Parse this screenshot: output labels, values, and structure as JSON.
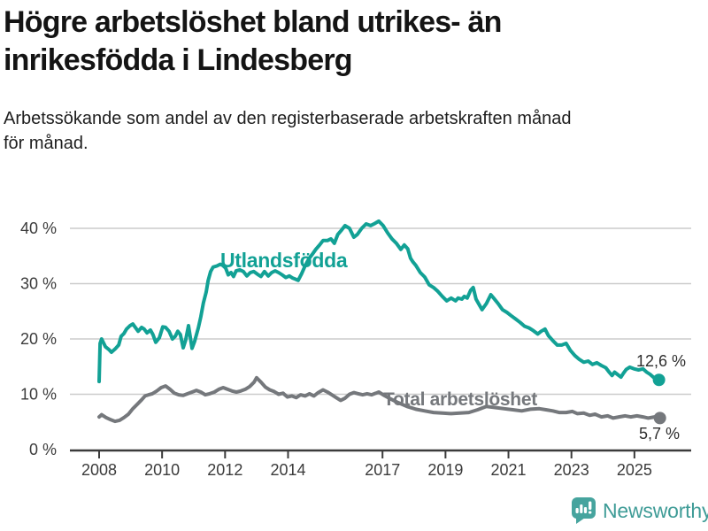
{
  "header": {
    "title_lines": [
      "Högre arbetslöshet bland utrikes- än",
      "inrikesfödda i Lindesberg"
    ],
    "subtitle_lines": [
      "Arbetssökande som andel av den registerbaserade arbetskraften månad",
      "för månad."
    ]
  },
  "footer": {
    "brand": "Newsworthy",
    "brand_color": "#3f9c97",
    "logo_icon": "bar-chart-speech-bubble-icon",
    "logo_color": "#46a49e"
  },
  "chart_data": {
    "type": "line",
    "title": "Högre arbetslöshet bland utrikes- än inrikesfödda i Lindesberg",
    "subtitle": "Arbetssökande som andel av den registerbaserade arbetskraften månad för månad.",
    "grid": true,
    "legend_position": "inline-annotations",
    "x_axis": {
      "ticks": [
        2008,
        2010,
        2012,
        2014,
        2017,
        2019,
        2021,
        2023,
        2025
      ],
      "range": [
        2007.1,
        2026.8
      ]
    },
    "y_axis": {
      "ticks": [
        0,
        10,
        20,
        30,
        40
      ],
      "tick_suffix": " %",
      "range": [
        0,
        42
      ]
    },
    "style": {
      "grid_color": "#cccccc",
      "axis_color": "#3b3b3b",
      "text_color": "#3b3b3b"
    },
    "series": [
      {
        "name": "Utlandsfödda",
        "color": "#12a195",
        "end_label": "12,6 %",
        "end_value": 12.6,
        "points": [
          [
            2008.0,
            12.3
          ],
          [
            2008.03,
            19.2
          ],
          [
            2008.08,
            20.0
          ],
          [
            2008.2,
            18.6
          ],
          [
            2008.31,
            18.1
          ],
          [
            2008.39,
            17.6
          ],
          [
            2008.51,
            18.2
          ],
          [
            2008.62,
            18.9
          ],
          [
            2008.7,
            20.5
          ],
          [
            2008.79,
            21.0
          ],
          [
            2008.87,
            21.8
          ],
          [
            2008.98,
            22.4
          ],
          [
            2009.07,
            22.7
          ],
          [
            2009.15,
            22.1
          ],
          [
            2009.24,
            21.4
          ],
          [
            2009.35,
            22.1
          ],
          [
            2009.43,
            21.8
          ],
          [
            2009.52,
            21.1
          ],
          [
            2009.63,
            21.6
          ],
          [
            2009.71,
            20.8
          ],
          [
            2009.8,
            19.4
          ],
          [
            2009.91,
            20.2
          ],
          [
            2010.02,
            22.2
          ],
          [
            2010.11,
            22.1
          ],
          [
            2010.22,
            21.4
          ],
          [
            2010.33,
            20.0
          ],
          [
            2010.42,
            20.5
          ],
          [
            2010.5,
            21.4
          ],
          [
            2010.58,
            20.8
          ],
          [
            2010.67,
            18.4
          ],
          [
            2010.75,
            19.8
          ],
          [
            2010.84,
            22.4
          ],
          [
            2010.95,
            18.3
          ],
          [
            2011.03,
            19.5
          ],
          [
            2011.15,
            22.0
          ],
          [
            2011.23,
            24.0
          ],
          [
            2011.31,
            26.5
          ],
          [
            2011.4,
            28.5
          ],
          [
            2011.46,
            30.5
          ],
          [
            2011.54,
            32.2
          ],
          [
            2011.62,
            33.0
          ],
          [
            2011.74,
            33.2
          ],
          [
            2011.85,
            33.5
          ],
          [
            2011.93,
            33.3
          ],
          [
            2012.02,
            32.8
          ],
          [
            2012.1,
            31.6
          ],
          [
            2012.19,
            32.0
          ],
          [
            2012.27,
            31.3
          ],
          [
            2012.35,
            32.3
          ],
          [
            2012.47,
            32.5
          ],
          [
            2012.58,
            32.2
          ],
          [
            2012.69,
            31.4
          ],
          [
            2012.8,
            32.0
          ],
          [
            2012.91,
            32.2
          ],
          [
            2013.03,
            31.7
          ],
          [
            2013.14,
            31.3
          ],
          [
            2013.25,
            32.2
          ],
          [
            2013.37,
            31.4
          ],
          [
            2013.48,
            32.0
          ],
          [
            2013.59,
            32.3
          ],
          [
            2013.7,
            32.0
          ],
          [
            2013.81,
            31.6
          ],
          [
            2013.93,
            31.1
          ],
          [
            2014.04,
            31.4
          ],
          [
            2014.15,
            31.0
          ],
          [
            2014.24,
            30.8
          ],
          [
            2014.32,
            30.6
          ],
          [
            2014.43,
            31.8
          ],
          [
            2014.54,
            33.2
          ],
          [
            2014.66,
            34.5
          ],
          [
            2014.77,
            35.3
          ],
          [
            2014.88,
            36.2
          ],
          [
            2015.0,
            37.0
          ],
          [
            2015.11,
            37.8
          ],
          [
            2015.25,
            37.8
          ],
          [
            2015.36,
            38.1
          ],
          [
            2015.47,
            37.3
          ],
          [
            2015.58,
            38.9
          ],
          [
            2015.7,
            39.7
          ],
          [
            2015.81,
            40.5
          ],
          [
            2015.95,
            40.0
          ],
          [
            2016.09,
            38.4
          ],
          [
            2016.2,
            38.9
          ],
          [
            2016.34,
            40.0
          ],
          [
            2016.48,
            40.8
          ],
          [
            2016.62,
            40.5
          ],
          [
            2016.76,
            40.9
          ],
          [
            2016.88,
            41.3
          ],
          [
            2017.02,
            40.5
          ],
          [
            2017.16,
            39.2
          ],
          [
            2017.3,
            38.1
          ],
          [
            2017.44,
            37.3
          ],
          [
            2017.58,
            36.2
          ],
          [
            2017.69,
            37.0
          ],
          [
            2017.8,
            36.3
          ],
          [
            2017.89,
            34.6
          ],
          [
            2017.97,
            33.9
          ],
          [
            2018.06,
            33.3
          ],
          [
            2018.2,
            32.0
          ],
          [
            2018.34,
            31.2
          ],
          [
            2018.48,
            29.8
          ],
          [
            2018.62,
            29.3
          ],
          [
            2018.76,
            28.6
          ],
          [
            2018.9,
            27.7
          ],
          [
            2019.04,
            26.9
          ],
          [
            2019.18,
            27.4
          ],
          [
            2019.32,
            26.9
          ],
          [
            2019.4,
            27.4
          ],
          [
            2019.52,
            27.2
          ],
          [
            2019.6,
            27.7
          ],
          [
            2019.69,
            27.4
          ],
          [
            2019.8,
            28.8
          ],
          [
            2019.88,
            29.3
          ],
          [
            2019.97,
            27.2
          ],
          [
            2020.08,
            26.1
          ],
          [
            2020.16,
            25.3
          ],
          [
            2020.3,
            26.4
          ],
          [
            2020.44,
            28.0
          ],
          [
            2020.53,
            27.4
          ],
          [
            2020.67,
            26.4
          ],
          [
            2020.81,
            25.3
          ],
          [
            2020.95,
            24.8
          ],
          [
            2021.09,
            24.2
          ],
          [
            2021.23,
            23.6
          ],
          [
            2021.37,
            23.0
          ],
          [
            2021.51,
            22.3
          ],
          [
            2021.65,
            22.0
          ],
          [
            2021.79,
            21.5
          ],
          [
            2021.93,
            20.9
          ],
          [
            2022.04,
            21.4
          ],
          [
            2022.16,
            21.8
          ],
          [
            2022.27,
            20.6
          ],
          [
            2022.41,
            19.7
          ],
          [
            2022.55,
            18.9
          ],
          [
            2022.69,
            18.9
          ],
          [
            2022.83,
            19.2
          ],
          [
            2022.97,
            17.9
          ],
          [
            2023.11,
            17.0
          ],
          [
            2023.25,
            16.3
          ],
          [
            2023.39,
            15.8
          ],
          [
            2023.53,
            16.0
          ],
          [
            2023.67,
            15.4
          ],
          [
            2023.81,
            15.7
          ],
          [
            2023.95,
            15.2
          ],
          [
            2024.09,
            14.8
          ],
          [
            2024.21,
            13.9
          ],
          [
            2024.29,
            13.4
          ],
          [
            2024.37,
            14.0
          ],
          [
            2024.46,
            13.6
          ],
          [
            2024.57,
            13.1
          ],
          [
            2024.65,
            13.8
          ],
          [
            2024.74,
            14.5
          ],
          [
            2024.85,
            14.9
          ],
          [
            2024.99,
            14.6
          ],
          [
            2025.13,
            14.4
          ],
          [
            2025.27,
            14.6
          ],
          [
            2025.39,
            14.0
          ],
          [
            2025.5,
            13.6
          ],
          [
            2025.64,
            12.9
          ],
          [
            2025.78,
            12.6
          ]
        ]
      },
      {
        "name": "Total arbetslöshet",
        "color": "#75787c",
        "end_label": "5,7 %",
        "end_value": 5.7,
        "points": [
          [
            2008.0,
            5.9
          ],
          [
            2008.08,
            6.3
          ],
          [
            2008.22,
            5.8
          ],
          [
            2008.37,
            5.4
          ],
          [
            2008.51,
            5.1
          ],
          [
            2008.65,
            5.3
          ],
          [
            2008.79,
            5.8
          ],
          [
            2008.93,
            6.4
          ],
          [
            2009.07,
            7.4
          ],
          [
            2009.21,
            8.2
          ],
          [
            2009.35,
            9.0
          ],
          [
            2009.46,
            9.7
          ],
          [
            2009.57,
            9.9
          ],
          [
            2009.69,
            10.1
          ],
          [
            2009.83,
            10.6
          ],
          [
            2009.97,
            11.2
          ],
          [
            2010.11,
            11.5
          ],
          [
            2010.25,
            10.9
          ],
          [
            2010.39,
            10.2
          ],
          [
            2010.53,
            9.9
          ],
          [
            2010.67,
            9.8
          ],
          [
            2010.81,
            10.1
          ],
          [
            2010.95,
            10.4
          ],
          [
            2011.09,
            10.7
          ],
          [
            2011.23,
            10.4
          ],
          [
            2011.37,
            9.9
          ],
          [
            2011.51,
            10.1
          ],
          [
            2011.66,
            10.4
          ],
          [
            2011.8,
            10.9
          ],
          [
            2011.94,
            11.2
          ],
          [
            2012.08,
            10.9
          ],
          [
            2012.22,
            10.6
          ],
          [
            2012.36,
            10.4
          ],
          [
            2012.5,
            10.6
          ],
          [
            2012.64,
            10.9
          ],
          [
            2012.78,
            11.4
          ],
          [
            2012.92,
            12.2
          ],
          [
            2013.0,
            13.0
          ],
          [
            2013.14,
            12.2
          ],
          [
            2013.28,
            11.3
          ],
          [
            2013.42,
            10.8
          ],
          [
            2013.56,
            10.5
          ],
          [
            2013.7,
            10.0
          ],
          [
            2013.84,
            10.2
          ],
          [
            2013.98,
            9.5
          ],
          [
            2014.12,
            9.7
          ],
          [
            2014.26,
            9.4
          ],
          [
            2014.4,
            9.9
          ],
          [
            2014.54,
            9.7
          ],
          [
            2014.68,
            10.1
          ],
          [
            2014.82,
            9.7
          ],
          [
            2014.96,
            10.3
          ],
          [
            2015.11,
            10.8
          ],
          [
            2015.25,
            10.4
          ],
          [
            2015.39,
            9.9
          ],
          [
            2015.53,
            9.4
          ],
          [
            2015.67,
            8.9
          ],
          [
            2015.81,
            9.3
          ],
          [
            2015.95,
            10.0
          ],
          [
            2016.09,
            10.3
          ],
          [
            2016.23,
            10.1
          ],
          [
            2016.37,
            9.9
          ],
          [
            2016.51,
            10.1
          ],
          [
            2016.65,
            9.9
          ],
          [
            2016.79,
            10.2
          ],
          [
            2016.88,
            10.4
          ],
          [
            2017.02,
            9.9
          ],
          [
            2017.21,
            9.3
          ],
          [
            2017.49,
            8.5
          ],
          [
            2017.78,
            7.8
          ],
          [
            2018.06,
            7.3
          ],
          [
            2018.34,
            7.0
          ],
          [
            2018.62,
            6.7
          ],
          [
            2018.9,
            6.6
          ],
          [
            2019.18,
            6.5
          ],
          [
            2019.46,
            6.6
          ],
          [
            2019.74,
            6.7
          ],
          [
            2020.02,
            7.2
          ],
          [
            2020.3,
            7.8
          ],
          [
            2020.58,
            7.6
          ],
          [
            2020.86,
            7.4
          ],
          [
            2021.14,
            7.2
          ],
          [
            2021.42,
            7.0
          ],
          [
            2021.7,
            7.3
          ],
          [
            2021.98,
            7.4
          ],
          [
            2022.19,
            7.2
          ],
          [
            2022.41,
            7.0
          ],
          [
            2022.61,
            6.7
          ],
          [
            2022.83,
            6.7
          ],
          [
            2023.03,
            6.9
          ],
          [
            2023.19,
            6.5
          ],
          [
            2023.39,
            6.6
          ],
          [
            2023.58,
            6.2
          ],
          [
            2023.75,
            6.4
          ],
          [
            2023.95,
            5.9
          ],
          [
            2024.15,
            6.1
          ],
          [
            2024.32,
            5.7
          ],
          [
            2024.51,
            5.9
          ],
          [
            2024.71,
            6.1
          ],
          [
            2024.88,
            5.9
          ],
          [
            2025.08,
            6.1
          ],
          [
            2025.27,
            5.9
          ],
          [
            2025.44,
            5.7
          ],
          [
            2025.64,
            5.9
          ],
          [
            2025.81,
            5.7
          ]
        ]
      }
    ]
  }
}
